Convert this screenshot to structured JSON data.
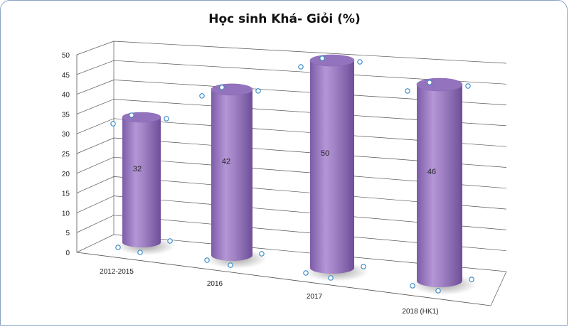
{
  "chart_data": {
    "type": "bar",
    "title": "Học sinh Khá- Giỏi (%)",
    "categories": [
      "2012-2015",
      "2016",
      "2017",
      "2018 (HK1)"
    ],
    "values": [
      32,
      42,
      50,
      46
    ],
    "ylim": [
      0,
      50
    ],
    "yticks": [
      0,
      5,
      10,
      15,
      20,
      25,
      30,
      35,
      40,
      45,
      50
    ],
    "xlabel": "",
    "ylabel": "",
    "grid": true,
    "legend": "none",
    "bar_shape": "cylinder",
    "colors": {
      "bar": "#a283c6",
      "bar_dark": "#7a5aa5",
      "bar_top": "#9373bd",
      "grid": "#555555",
      "handle": "#2f86c4"
    }
  }
}
